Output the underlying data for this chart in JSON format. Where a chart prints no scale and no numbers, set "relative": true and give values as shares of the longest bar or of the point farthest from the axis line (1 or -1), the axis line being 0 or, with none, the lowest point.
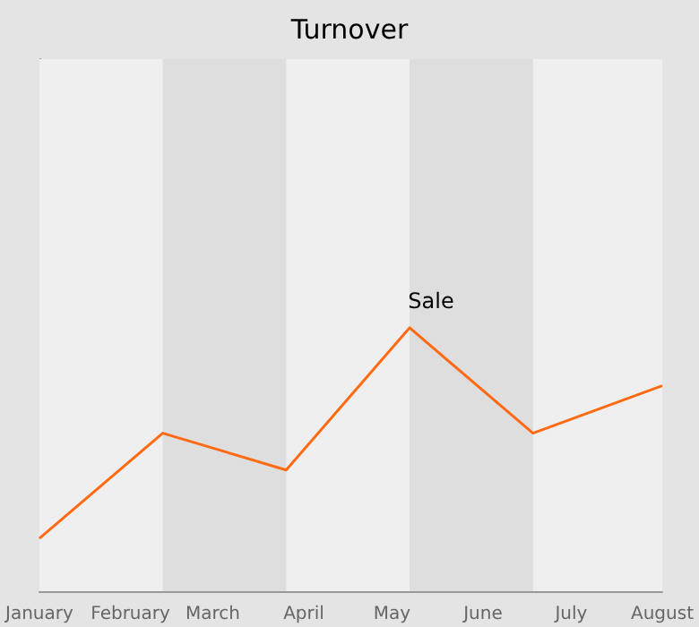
{
  "chart_data": {
    "type": "line",
    "title": "Turnover",
    "relative": true,
    "x": [
      "--01-01",
      "--02-12",
      "--03-26",
      "--05-07",
      "--06-18",
      "--08-01"
    ],
    "xlim": [
      "--01-01",
      "--08-01"
    ],
    "xticks": [
      {
        "value": "--01-01",
        "label": "January"
      },
      {
        "value": "--02-01",
        "label": "February"
      },
      {
        "value": "--03-01",
        "label": "March"
      },
      {
        "value": "--04-01",
        "label": "April"
      },
      {
        "value": "--05-01",
        "label": "May"
      },
      {
        "value": "--06-01",
        "label": "June"
      },
      {
        "value": "--07-01",
        "label": "July"
      },
      {
        "value": "--08-01",
        "label": "August"
      }
    ],
    "series": [
      {
        "color": "#ff6a13",
        "values": [
          0.2,
          0.6,
          0.46,
          1,
          0.6,
          0.78
        ]
      }
    ],
    "bands": [
      {
        "axis": "x",
        "from": "--01-01",
        "to": "--02-12",
        "color": "#efefef"
      },
      {
        "axis": "x",
        "from": "--03-26",
        "to": "--05-07",
        "color": "#efefef"
      },
      {
        "axis": "x",
        "from": "--06-18",
        "to": "--08-01",
        "color": "#efefef"
      }
    ],
    "annotations": [
      {
        "text": "Sale",
        "x": "--05-07",
        "y": 1
      }
    ],
    "marker": "none",
    "line_style": "solid",
    "grid": false
  }
}
